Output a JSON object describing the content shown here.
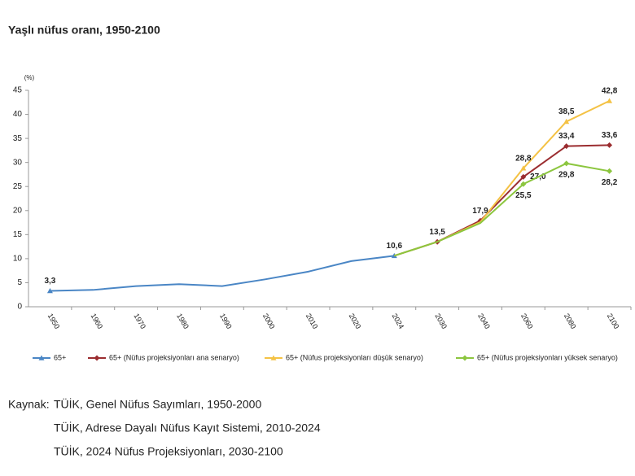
{
  "chart_data": {
    "type": "line",
    "title": "Yaşlı nüfus oranı, 1950-2100",
    "y_unit": "(%)",
    "categories": [
      "1950",
      "1960",
      "1970",
      "1980",
      "1990",
      "2000",
      "2010",
      "2020",
      "2024",
      "2030",
      "2040",
      "2060",
      "2080",
      "2100"
    ],
    "ylim": [
      0,
      45
    ],
    "yticks": [
      0,
      5,
      10,
      15,
      20,
      25,
      30,
      35,
      40,
      45
    ],
    "series": [
      {
        "name": "65+",
        "color": "#4a86c5",
        "marker": "triangle",
        "values": [
          3.3,
          3.5,
          4.3,
          4.7,
          4.3,
          5.7,
          7.3,
          9.5,
          10.6,
          null,
          null,
          null,
          null,
          null
        ],
        "value_labels": [
          "3,3",
          null,
          null,
          null,
          null,
          null,
          null,
          null,
          "10,6",
          null,
          null,
          null,
          null,
          null
        ]
      },
      {
        "name": "65+ (Nüfus projeksiyonları ana senaryo)",
        "color": "#9b2d30",
        "marker": "diamond",
        "values": [
          null,
          null,
          null,
          null,
          null,
          null,
          null,
          null,
          10.6,
          13.5,
          17.9,
          27.0,
          33.4,
          33.6
        ],
        "value_labels": [
          null,
          null,
          null,
          null,
          null,
          null,
          null,
          null,
          null,
          "13,5",
          "17,9",
          "27,0",
          "33,4",
          "33,6"
        ]
      },
      {
        "name": "65+ (Nüfus projeksiyonları düşük senaryo)",
        "color": "#f4c245",
        "marker": "triangle",
        "values": [
          null,
          null,
          null,
          null,
          null,
          null,
          null,
          null,
          10.6,
          13.5,
          17.6,
          28.8,
          38.5,
          42.8
        ],
        "value_labels": [
          null,
          null,
          null,
          null,
          null,
          null,
          null,
          null,
          null,
          null,
          null,
          "28,8",
          "38,5",
          "42,8"
        ]
      },
      {
        "name": "65+ (Nüfus projeksiyonları yüksek senaryo)",
        "color": "#8cc63f",
        "marker": "diamond",
        "values": [
          null,
          null,
          null,
          null,
          null,
          null,
          null,
          null,
          10.6,
          13.5,
          17.4,
          25.5,
          29.8,
          28.2
        ],
        "value_labels": [
          null,
          null,
          null,
          null,
          null,
          null,
          null,
          null,
          null,
          null,
          null,
          "25,5",
          "29,8",
          "28,2"
        ]
      }
    ]
  },
  "source": {
    "label": "Kaynak:",
    "lines": [
      "TÜİK, Genel Nüfus Sayımları, 1950-2000",
      "TÜİK, Adrese Dayalı Nüfus Kayıt Sistemi, 2010-2024",
      "TÜİK, 2024 Nüfus Projeksiyonları, 2030-2100"
    ]
  }
}
